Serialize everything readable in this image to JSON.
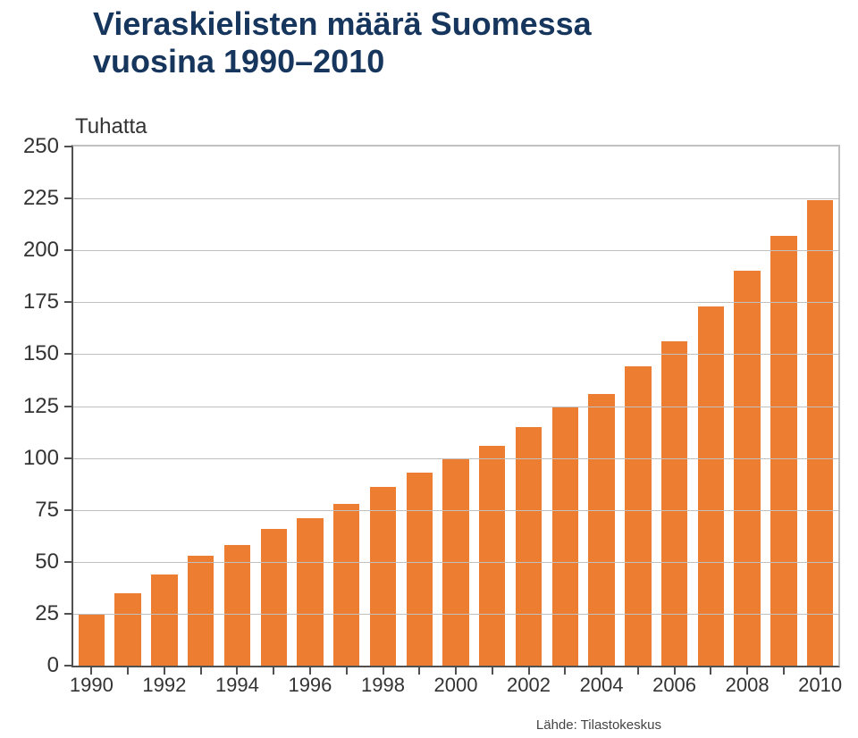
{
  "title_line1": "Vieraskielisten määrä Suomessa",
  "title_line2": "vuosina 1990–2010",
  "title_color": "#17365d",
  "title_fontsize": 36,
  "title_fontweight": "bold",
  "chart": {
    "type": "bar",
    "yaxis_label": "Tuhatta",
    "ylim_min": 0,
    "ylim_max": 250,
    "ytick_step": 25,
    "ylabels": [
      "0",
      "25",
      "50",
      "75",
      "100",
      "125",
      "150",
      "175",
      "200",
      "225",
      "250"
    ],
    "bar_color": "#ed7d31",
    "grid_color": "#c0c0c0",
    "axis_color": "#505050",
    "text_color": "#333333",
    "background_color": "#ffffff",
    "categories": [
      "1990",
      "1991",
      "1992",
      "1993",
      "1994",
      "1995",
      "1996",
      "1997",
      "1998",
      "1999",
      "2000",
      "2001",
      "2002",
      "2003",
      "2004",
      "2005",
      "2006",
      "2007",
      "2008",
      "2009",
      "2010"
    ],
    "values": [
      25,
      35,
      44,
      53,
      58,
      66,
      71,
      78,
      86,
      93,
      100,
      106,
      115,
      125,
      131,
      144,
      156,
      173,
      190,
      207,
      224
    ],
    "xtick_indices": [
      0,
      2,
      4,
      6,
      8,
      10,
      12,
      14,
      16,
      18,
      20
    ],
    "xtick_labels": [
      "1990",
      "1992",
      "1994",
      "1996",
      "1998",
      "2000",
      "2002",
      "2004",
      "2006",
      "2008",
      "2010"
    ],
    "bar_width_ratio": 0.72,
    "axis_fontsize": 24,
    "xaxis_fontsize": 22
  },
  "source_label": "Lähde: Tilastokeskus"
}
